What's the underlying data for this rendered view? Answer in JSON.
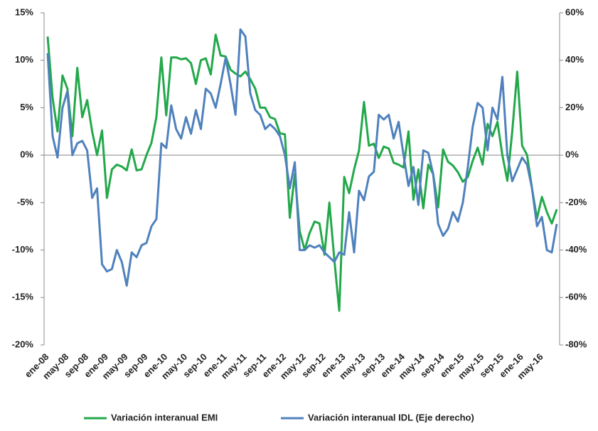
{
  "chart_data": {
    "type": "line",
    "categories": [
      "ene-08",
      null,
      null,
      null,
      "may-08",
      null,
      null,
      null,
      "sep-08",
      null,
      null,
      null,
      "ene-09",
      null,
      null,
      null,
      "may-09",
      null,
      null,
      null,
      "sep-09",
      null,
      null,
      null,
      "ene-10",
      null,
      null,
      null,
      "may-10",
      null,
      null,
      null,
      "sep-10",
      null,
      null,
      null,
      "ene-11",
      null,
      null,
      null,
      "may-11",
      null,
      null,
      null,
      "sep-11",
      null,
      null,
      null,
      "ene-12",
      null,
      null,
      null,
      "may-12",
      null,
      null,
      null,
      "sep-12",
      null,
      null,
      null,
      "ene-13",
      null,
      null,
      null,
      "may-13",
      null,
      null,
      null,
      "sep-13",
      null,
      null,
      null,
      "ene-14",
      null,
      null,
      null,
      "may-14",
      null,
      null,
      null,
      "sep-14",
      null,
      null,
      null,
      "ene-15",
      null,
      null,
      null,
      "may-15",
      null,
      null,
      null,
      "sep-15",
      null,
      null,
      null,
      "ene-16",
      null,
      null,
      null,
      "may-16",
      null,
      null,
      null
    ],
    "series": [
      {
        "name": "Variación interanual EMI",
        "color": "#22a84a",
        "values": [
          12.5,
          6,
          2.5,
          8.4,
          7,
          2,
          9.2,
          4,
          5.8,
          2.5,
          0,
          2.6,
          -4.5,
          -1.5,
          -1,
          -1.2,
          -1.6,
          0.6,
          -1.6,
          -1.5,
          0,
          1.3,
          4,
          10.3,
          4.2,
          10.3,
          10.3,
          10.1,
          10.2,
          9.7,
          7.5,
          10,
          10.2,
          8.5,
          12.7,
          10.5,
          10.4,
          9,
          8.6,
          8.3,
          8.8,
          8,
          7,
          5,
          5,
          4,
          3.8,
          2.3,
          2.2,
          -6.6,
          -2,
          -8,
          -10,
          -8.2,
          -7,
          -7.2,
          -10.5,
          -5,
          -11,
          -16.4,
          -2.3,
          -4,
          -1.5,
          0.5,
          5.6,
          1,
          1.2,
          -0.3,
          0.9,
          0.7,
          -0.8,
          -1,
          -1.3,
          2.5,
          -4.7,
          -1.5,
          -5.6,
          -1,
          -2,
          -5.5,
          0.6,
          -0.7,
          -1.1,
          -1.8,
          -2.8,
          -2.3,
          -0.6,
          0.8,
          -1,
          3.3,
          2,
          3.5,
          0,
          -2.7,
          2.5,
          8.8,
          1,
          0,
          -3.5,
          -6.7,
          -4.4,
          -6,
          -7.2,
          -5.7
        ]
      },
      {
        "name": "Variación interanual IDL (Eje derecho)",
        "color": "#4f81bd",
        "axis": "y2",
        "values": [
          43,
          8,
          -1,
          20,
          27,
          0,
          5,
          6,
          2,
          -18,
          -14,
          -46,
          -49,
          -48,
          -40,
          -45,
          -55,
          -41,
          -43,
          -38,
          -37,
          -30,
          -27,
          5,
          3,
          21,
          11,
          7,
          16,
          9,
          19,
          11,
          28,
          26,
          20,
          30,
          41,
          30,
          17,
          53,
          50,
          26,
          19,
          17,
          11,
          13,
          11,
          8,
          0,
          -14,
          -3,
          -40,
          -40,
          -38,
          -39,
          -38,
          -41,
          -43,
          -45,
          -41,
          -42,
          -24,
          -41,
          -15,
          -19,
          -9,
          -7,
          17,
          15,
          17,
          7,
          14,
          0,
          -13,
          -5,
          -21,
          2,
          1,
          -8,
          -29,
          -34,
          -31,
          -24,
          -28,
          -20,
          -5,
          12,
          22,
          20,
          2,
          20,
          15,
          33,
          0,
          -11,
          -6,
          -1,
          -4,
          -14,
          -30,
          -26,
          -40,
          -41,
          -29
        ]
      }
    ],
    "ylim": [
      -20,
      15
    ],
    "yticks": [
      {
        "value": -20,
        "label": "-20%"
      },
      {
        "value": -15,
        "label": "-15%"
      },
      {
        "value": -10,
        "label": "-10%"
      },
      {
        "value": -5,
        "label": "-5%"
      },
      {
        "value": 0,
        "label": "0%"
      },
      {
        "value": 5,
        "label": "5%"
      },
      {
        "value": 10,
        "label": "10%"
      },
      {
        "value": 15,
        "label": "15%"
      }
    ],
    "y2lim": [
      -80,
      60
    ],
    "y2ticks": [
      {
        "value": -80,
        "label": "-80%"
      },
      {
        "value": -60,
        "label": "-60%"
      },
      {
        "value": -40,
        "label": "-40%"
      },
      {
        "value": -20,
        "label": "-20%"
      },
      {
        "value": 0,
        "label": "0%"
      },
      {
        "value": 20,
        "label": "20%"
      },
      {
        "value": 40,
        "label": "40%"
      },
      {
        "value": 60,
        "label": "60%"
      }
    ],
    "legend": "bottom"
  }
}
